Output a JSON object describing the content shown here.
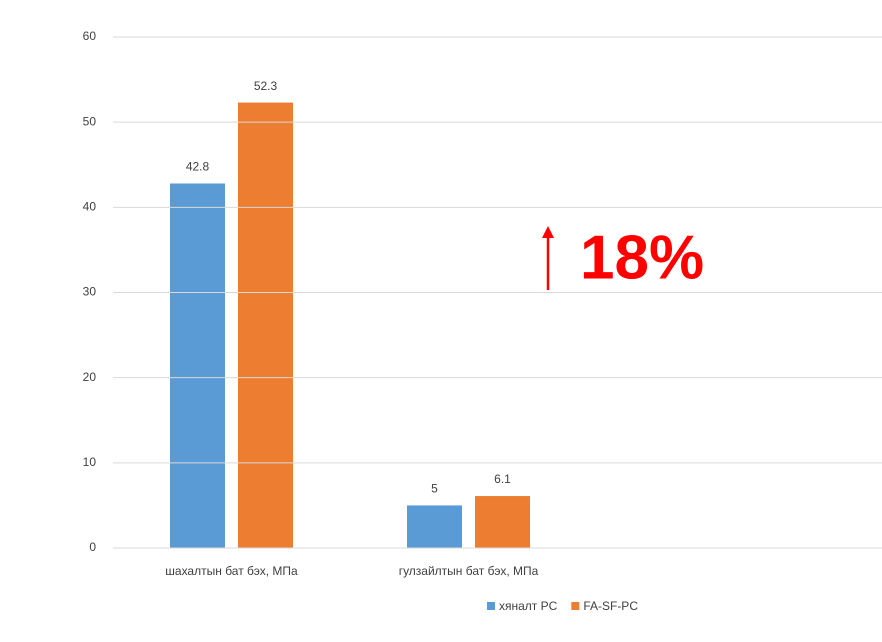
{
  "chart_data": {
    "type": "bar",
    "categories": [
      "шахалтын бат бэх, МПа",
      "гулзайлтын бат бэх, МПа"
    ],
    "series": [
      {
        "name": "хяналт PC",
        "color": "#5b9bd5",
        "values": [
          42.8,
          5
        ]
      },
      {
        "name": "FA-SF-PC",
        "color": "#ed7d31",
        "values": [
          52.3,
          6.1
        ]
      }
    ],
    "ylim": [
      0,
      60
    ],
    "yticks": [
      0,
      10,
      20,
      30,
      40,
      50,
      60
    ],
    "grid": true,
    "legend": "bottom",
    "annotation": "18%"
  }
}
